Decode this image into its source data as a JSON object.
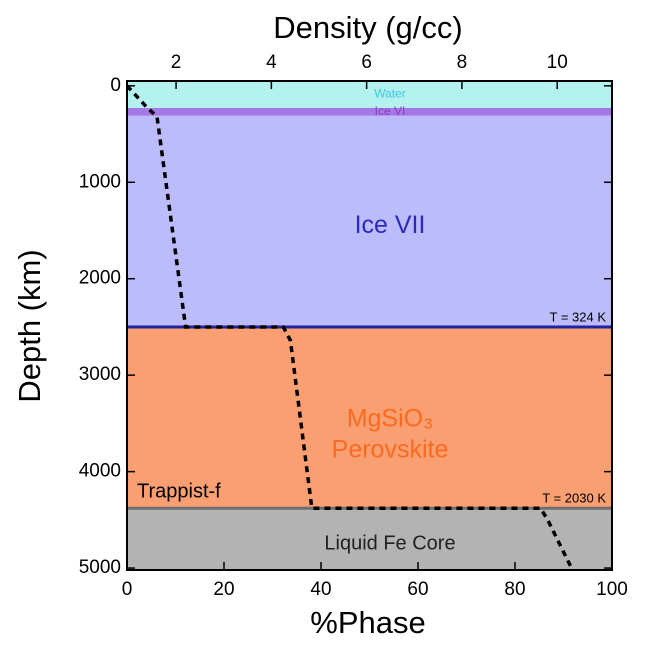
{
  "chart_data": {
    "type": "layers",
    "x_label": "%Phase",
    "x2_label": "Density (g/cc)",
    "y_label": "Depth (km)",
    "xlim": [
      0,
      100
    ],
    "xticks": [
      0,
      20,
      40,
      60,
      80,
      100
    ],
    "x2lim": [
      0.97,
      11.15
    ],
    "x2ticks": [
      2,
      4,
      6,
      8,
      10
    ],
    "ylim": [
      -50,
      5020
    ],
    "yticks": [
      0,
      1000,
      2000,
      3000,
      4000,
      5000
    ],
    "layers": [
      {
        "label": [
          "Water"
        ],
        "top": -50,
        "bottom": 230,
        "color": "#b4f2f0",
        "label_color": "#3cc8e0"
      },
      {
        "label": [
          "Ice VI"
        ],
        "top": 230,
        "bottom": 311,
        "color": "#a678e6",
        "label_color": "#8a3cc8"
      },
      {
        "label": [
          "Ice VII"
        ],
        "top": 311,
        "bottom": 2500,
        "color": "#bcbcfd",
        "label_color": "#2a2ab8",
        "boundary_label": "T = 324 K",
        "boundary_color": "#2020a0"
      },
      {
        "label": [
          "MgSiO₃",
          "Perovskite"
        ],
        "top": 2500,
        "bottom": 4380,
        "color": "#fa9f72",
        "label_color": "#fb6a1e",
        "boundary_label": "T = 2030 K",
        "boundary_color": "#6e6e6e"
      },
      {
        "label": [
          "Liquid Fe Core"
        ],
        "top": 4380,
        "bottom": 5020,
        "color": "#b3b3b3",
        "label_color": "#222222"
      }
    ],
    "annotation": "Trappist-f",
    "density_profile": {
      "x": [
        0.97,
        1.4,
        1.6,
        2.2,
        4.25,
        4.4,
        4.85,
        9.65,
        9.8,
        10.3
      ],
      "y": [
        0,
        230,
        320,
        2500,
        2500,
        2640,
        4380,
        4380,
        4500,
        5000
      ],
      "color": "#000000"
    }
  }
}
